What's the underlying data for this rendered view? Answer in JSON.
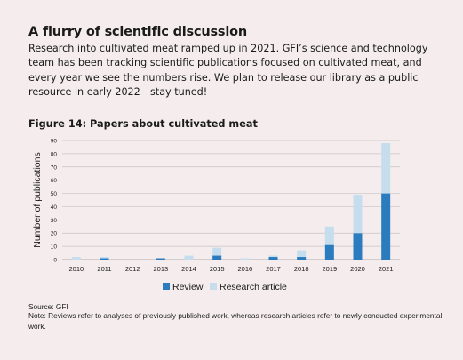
{
  "heading": "A flurry of scientific discussion",
  "intro": "Research into cultivated meat ramped up in 2021. GFI’s science and technology team has been tracking scientific publications focused on cultivated meat, and every year we see the numbers rise. We plan to release our library as a public resource in early 2022—stay tuned!",
  "figure_title": "Figure 14: Papers about cultivated meat",
  "source": "Source: GFI",
  "note": "Note: Reviews refer to analyses of previously published work, whereas research articles refer to newly conducted experimental work.",
  "colors": {
    "review": "#2b7bbf",
    "research_article": "#c6ddee",
    "grid": "#c7c2c2",
    "background": "#f5eded"
  },
  "chart_data": {
    "type": "bar",
    "stacked": true,
    "categories": [
      "2010",
      "2011",
      "2012",
      "2013",
      "2014",
      "2015",
      "2016",
      "2017",
      "2018",
      "2019",
      "2020",
      "2021"
    ],
    "series": [
      {
        "name": "Review",
        "values": [
          0,
          1,
          0,
          1,
          0,
          3,
          0,
          2,
          2,
          11,
          20,
          50
        ]
      },
      {
        "name": "Research article",
        "values": [
          2,
          1,
          0,
          0,
          3,
          6,
          1,
          1,
          5,
          14,
          29,
          38
        ]
      }
    ],
    "ylabel": "Number of publications",
    "xlabel": "",
    "ylim": [
      0,
      90
    ],
    "yticks": [
      "0",
      "10",
      "20",
      "30",
      "40",
      "50",
      "60",
      "70",
      "80",
      "90"
    ],
    "grid": true,
    "legend_position": "bottom"
  }
}
